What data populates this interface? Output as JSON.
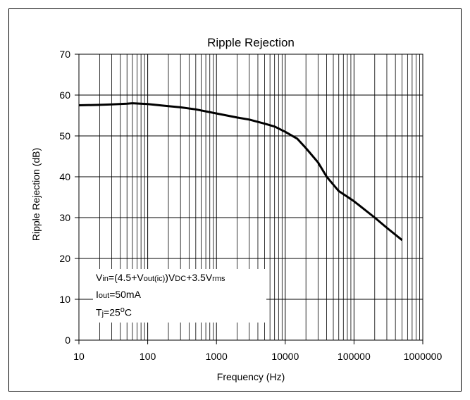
{
  "chart_data": {
    "type": "line",
    "title": "Ripple Rejection",
    "xlabel": "Frequency (Hz)",
    "ylabel": "Ripple Rejection (dB)",
    "x_scale": "log",
    "xlim": [
      10,
      1000000
    ],
    "ylim": [
      0,
      70
    ],
    "x_ticks": [
      "10",
      "100",
      "1000",
      "10000",
      "100000",
      "1000000"
    ],
    "y_ticks": [
      "0",
      "10",
      "20",
      "30",
      "40",
      "50",
      "60",
      "70"
    ],
    "grid": true,
    "series": [
      {
        "x": [
          10,
          20,
          30,
          50,
          60,
          100,
          200,
          300,
          500,
          1000,
          2000,
          3000,
          5000,
          7000,
          10000,
          15000,
          20000,
          30000,
          40000,
          60000,
          100000,
          200000,
          300000,
          500000
        ],
        "y": [
          57.5,
          57.6,
          57.7,
          57.9,
          58.0,
          57.8,
          57.3,
          57.0,
          56.5,
          55.5,
          54.5,
          54.0,
          53.0,
          52.3,
          51.0,
          49.3,
          47.0,
          43.5,
          40.0,
          36.5,
          34.0,
          30.0,
          27.5,
          24.5
        ]
      }
    ],
    "annotation": {
      "line1": {
        "a": "V",
        "b": "in",
        "c": "=(4.5+V",
        "d": "out(ic)",
        "e": ")V",
        "f": "DC",
        "g": "+3.5V",
        "h": "rms"
      },
      "line2": {
        "a": "I",
        "b": "out",
        "c": "=50mA"
      },
      "line3": {
        "a": "T",
        "b": "j",
        "c": "=25",
        "d": "o",
        "e": "C"
      }
    }
  }
}
